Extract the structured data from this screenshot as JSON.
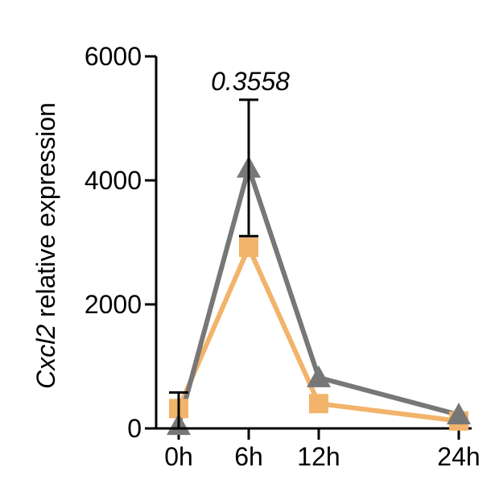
{
  "chart_data": {
    "type": "line",
    "title": "",
    "xlabel": "",
    "ylabel_italic": "Cxcl2",
    "ylabel_rest": " relative expression",
    "x": [
      0,
      6,
      12,
      24
    ],
    "x_tick_labels": [
      "0h",
      "6h",
      "12h",
      "24h"
    ],
    "ylim": [
      0,
      6000
    ],
    "y_ticks": [
      0,
      2000,
      4000,
      6000
    ],
    "y_tick_labels": [
      "0",
      "2000",
      "4000",
      "6000"
    ],
    "grid": false,
    "legend": "none",
    "series": [
      {
        "marker": "square",
        "color": "#f2b36b",
        "values": [
          320,
          2920,
          400,
          120
        ],
        "error": [
          0,
          0,
          0,
          0
        ]
      },
      {
        "marker": "triangle",
        "color": "#777777",
        "values": [
          50,
          4200,
          820,
          220
        ],
        "error": [
          530,
          1100,
          0,
          0
        ]
      }
    ],
    "annotations": [
      {
        "text": "0.3558",
        "x": 6,
        "style": "italic"
      }
    ]
  }
}
